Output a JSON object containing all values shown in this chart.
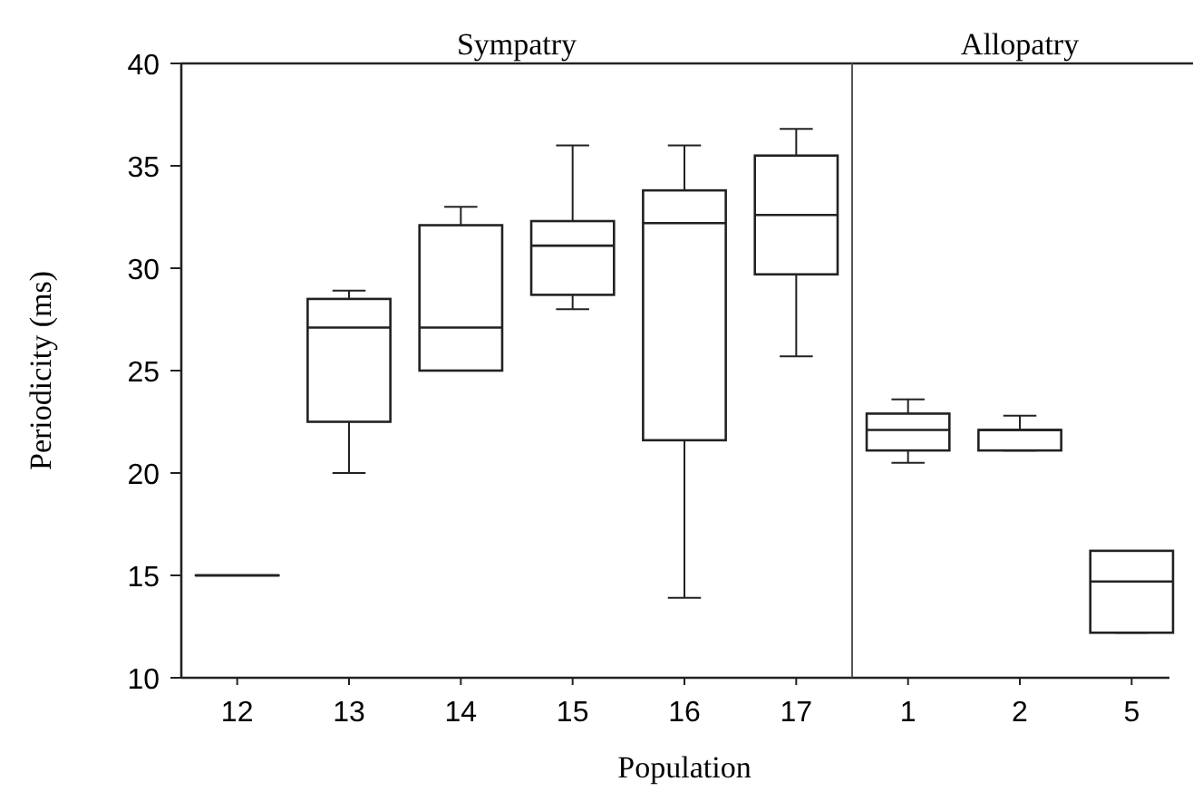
{
  "chart_data": [
    {
      "type": "box",
      "title": "Sympatry",
      "xlabel": "Population",
      "ylabel": "Periodicity (ms)",
      "categories": [
        "12",
        "13",
        "14",
        "15",
        "16",
        "17"
      ],
      "boxes": [
        {
          "low": 15,
          "q1": 15,
          "median": 15,
          "q3": 15,
          "high": 15
        },
        {
          "low": 20,
          "q1": 22.5,
          "median": 27.1,
          "q3": 28.5,
          "high": 28.9
        },
        {
          "low": 25,
          "q1": 25,
          "median": 27.1,
          "q3": 32.1,
          "high": 33
        },
        {
          "low": 28,
          "q1": 28.7,
          "median": 31.1,
          "q3": 32.3,
          "high": 36
        },
        {
          "low": 13.9,
          "q1": 21.6,
          "median": 32.2,
          "q3": 33.8,
          "high": 36
        },
        {
          "low": 25.7,
          "q1": 29.7,
          "median": 32.6,
          "q3": 35.5,
          "high": 36.8
        }
      ],
      "ylim": [
        10,
        40
      ],
      "yticks": [
        10,
        15,
        20,
        25,
        30,
        35,
        40
      ]
    },
    {
      "type": "box",
      "title": "Allopatry",
      "categories": [
        "1",
        "2",
        "5"
      ],
      "boxes": [
        {
          "low": 20.5,
          "q1": 21.1,
          "median": 22.1,
          "q3": 22.9,
          "high": 23.6
        },
        {
          "low": 21.1,
          "q1": 21.1,
          "median": 22.1,
          "q3": 22.1,
          "high": 22.8
        },
        {
          "low": 12.2,
          "q1": 12.2,
          "median": 14.7,
          "q3": 16.2,
          "high": 16.2
        }
      ],
      "ylim": [
        10,
        40
      ],
      "tick_labels": "x"
    }
  ]
}
